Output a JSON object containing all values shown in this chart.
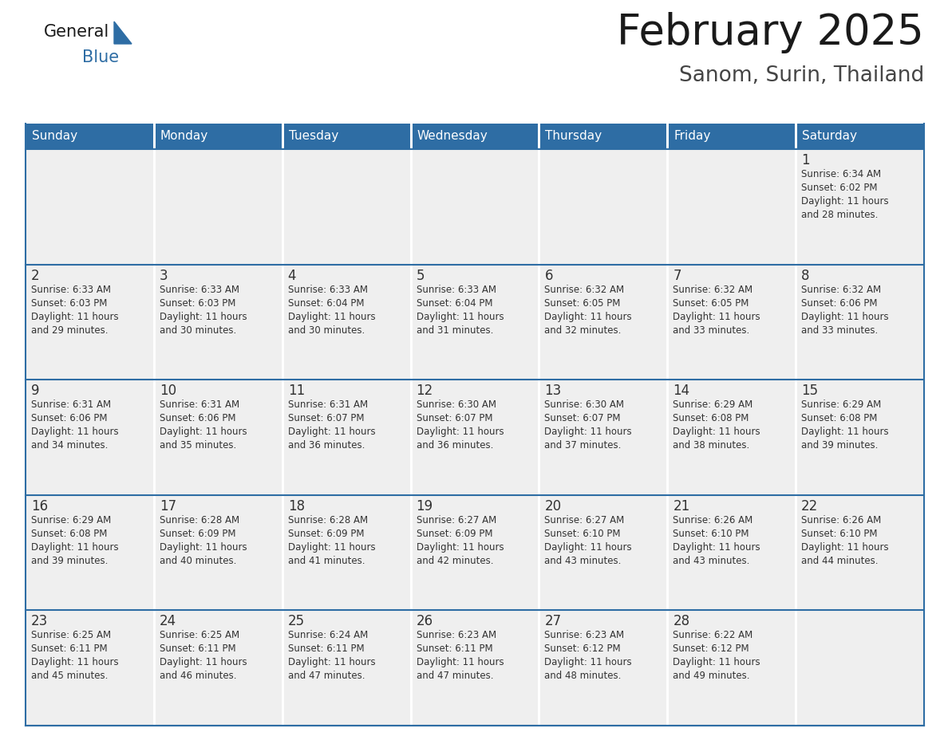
{
  "title": "February 2025",
  "subtitle": "Sanom, Surin, Thailand",
  "days_of_week": [
    "Sunday",
    "Monday",
    "Tuesday",
    "Wednesday",
    "Thursday",
    "Friday",
    "Saturday"
  ],
  "header_bg": "#2E6DA4",
  "header_text": "#FFFFFF",
  "cell_bg_gray": "#EFEFEF",
  "cell_bg_white": "#FFFFFF",
  "border_color": "#2E6DA4",
  "day_num_color": "#333333",
  "cell_text_color": "#333333",
  "title_color": "#1a1a1a",
  "subtitle_color": "#444444",
  "logo_general_color": "#1a1a1a",
  "logo_blue_color": "#2E6DA4",
  "logo_triangle_color": "#2E6DA4",
  "calendar_data": [
    [
      {
        "day": null,
        "sunrise": null,
        "sunset": null,
        "daylight": null
      },
      {
        "day": null,
        "sunrise": null,
        "sunset": null,
        "daylight": null
      },
      {
        "day": null,
        "sunrise": null,
        "sunset": null,
        "daylight": null
      },
      {
        "day": null,
        "sunrise": null,
        "sunset": null,
        "daylight": null
      },
      {
        "day": null,
        "sunrise": null,
        "sunset": null,
        "daylight": null
      },
      {
        "day": null,
        "sunrise": null,
        "sunset": null,
        "daylight": null
      },
      {
        "day": 1,
        "sunrise": "6:34 AM",
        "sunset": "6:02 PM",
        "daylight": "11 hours and 28 minutes."
      }
    ],
    [
      {
        "day": 2,
        "sunrise": "6:33 AM",
        "sunset": "6:03 PM",
        "daylight": "11 hours and 29 minutes."
      },
      {
        "day": 3,
        "sunrise": "6:33 AM",
        "sunset": "6:03 PM",
        "daylight": "11 hours and 30 minutes."
      },
      {
        "day": 4,
        "sunrise": "6:33 AM",
        "sunset": "6:04 PM",
        "daylight": "11 hours and 30 minutes."
      },
      {
        "day": 5,
        "sunrise": "6:33 AM",
        "sunset": "6:04 PM",
        "daylight": "11 hours and 31 minutes."
      },
      {
        "day": 6,
        "sunrise": "6:32 AM",
        "sunset": "6:05 PM",
        "daylight": "11 hours and 32 minutes."
      },
      {
        "day": 7,
        "sunrise": "6:32 AM",
        "sunset": "6:05 PM",
        "daylight": "11 hours and 33 minutes."
      },
      {
        "day": 8,
        "sunrise": "6:32 AM",
        "sunset": "6:06 PM",
        "daylight": "11 hours and 33 minutes."
      }
    ],
    [
      {
        "day": 9,
        "sunrise": "6:31 AM",
        "sunset": "6:06 PM",
        "daylight": "11 hours and 34 minutes."
      },
      {
        "day": 10,
        "sunrise": "6:31 AM",
        "sunset": "6:06 PM",
        "daylight": "11 hours and 35 minutes."
      },
      {
        "day": 11,
        "sunrise": "6:31 AM",
        "sunset": "6:07 PM",
        "daylight": "11 hours and 36 minutes."
      },
      {
        "day": 12,
        "sunrise": "6:30 AM",
        "sunset": "6:07 PM",
        "daylight": "11 hours and 36 minutes."
      },
      {
        "day": 13,
        "sunrise": "6:30 AM",
        "sunset": "6:07 PM",
        "daylight": "11 hours and 37 minutes."
      },
      {
        "day": 14,
        "sunrise": "6:29 AM",
        "sunset": "6:08 PM",
        "daylight": "11 hours and 38 minutes."
      },
      {
        "day": 15,
        "sunrise": "6:29 AM",
        "sunset": "6:08 PM",
        "daylight": "11 hours and 39 minutes."
      }
    ],
    [
      {
        "day": 16,
        "sunrise": "6:29 AM",
        "sunset": "6:08 PM",
        "daylight": "11 hours and 39 minutes."
      },
      {
        "day": 17,
        "sunrise": "6:28 AM",
        "sunset": "6:09 PM",
        "daylight": "11 hours and 40 minutes."
      },
      {
        "day": 18,
        "sunrise": "6:28 AM",
        "sunset": "6:09 PM",
        "daylight": "11 hours and 41 minutes."
      },
      {
        "day": 19,
        "sunrise": "6:27 AM",
        "sunset": "6:09 PM",
        "daylight": "11 hours and 42 minutes."
      },
      {
        "day": 20,
        "sunrise": "6:27 AM",
        "sunset": "6:10 PM",
        "daylight": "11 hours and 43 minutes."
      },
      {
        "day": 21,
        "sunrise": "6:26 AM",
        "sunset": "6:10 PM",
        "daylight": "11 hours and 43 minutes."
      },
      {
        "day": 22,
        "sunrise": "6:26 AM",
        "sunset": "6:10 PM",
        "daylight": "11 hours and 44 minutes."
      }
    ],
    [
      {
        "day": 23,
        "sunrise": "6:25 AM",
        "sunset": "6:11 PM",
        "daylight": "11 hours and 45 minutes."
      },
      {
        "day": 24,
        "sunrise": "6:25 AM",
        "sunset": "6:11 PM",
        "daylight": "11 hours and 46 minutes."
      },
      {
        "day": 25,
        "sunrise": "6:24 AM",
        "sunset": "6:11 PM",
        "daylight": "11 hours and 47 minutes."
      },
      {
        "day": 26,
        "sunrise": "6:23 AM",
        "sunset": "6:11 PM",
        "daylight": "11 hours and 47 minutes."
      },
      {
        "day": 27,
        "sunrise": "6:23 AM",
        "sunset": "6:12 PM",
        "daylight": "11 hours and 48 minutes."
      },
      {
        "day": 28,
        "sunrise": "6:22 AM",
        "sunset": "6:12 PM",
        "daylight": "11 hours and 49 minutes."
      },
      {
        "day": null,
        "sunrise": null,
        "sunset": null,
        "daylight": null
      }
    ]
  ]
}
